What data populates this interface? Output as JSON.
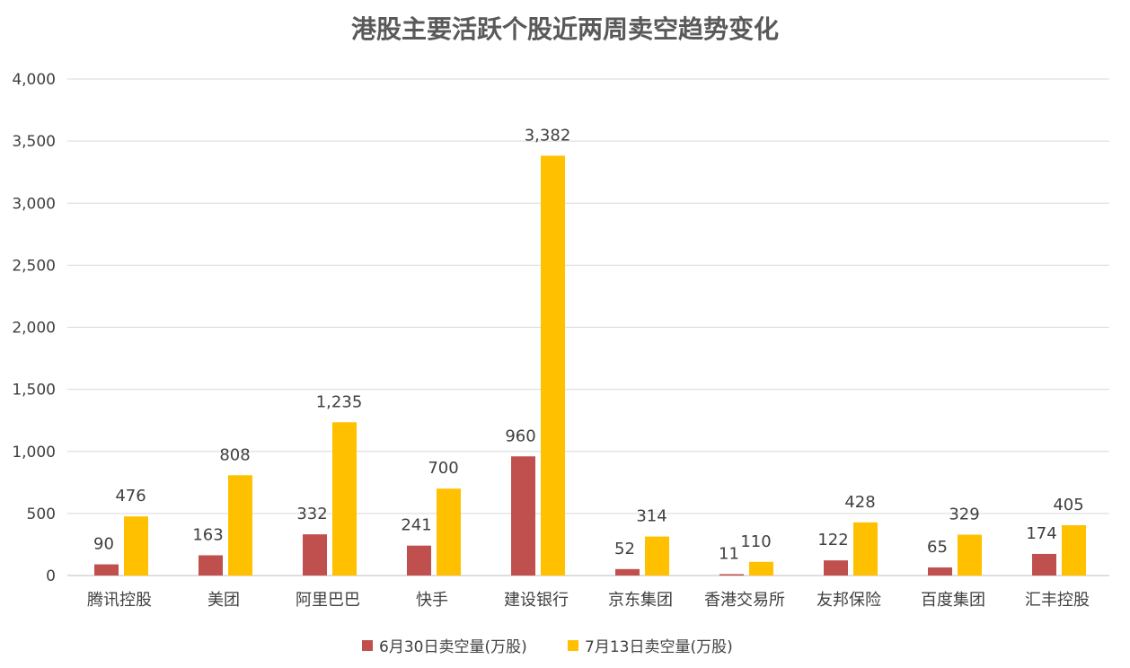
{
  "chart_data": {
    "type": "bar",
    "title": "港股主要活跃个股近两周卖空趋势变化",
    "xlabel": "",
    "ylabel": "",
    "ylim": [
      0,
      4000
    ],
    "yticks": [
      0,
      500,
      1000,
      1500,
      2000,
      2500,
      3000,
      3500,
      4000
    ],
    "ytick_labels": [
      "0",
      "500",
      "1,000",
      "1,500",
      "2,000",
      "2,500",
      "3,000",
      "3,500",
      "4,000"
    ],
    "grid": true,
    "legend_position": "bottom",
    "categories": [
      "腾讯控股",
      "美团",
      "阿里巴巴",
      "快手",
      "建设银行",
      "京东集团",
      "香港交易所",
      "友邦保险",
      "百度集团",
      "汇丰控股"
    ],
    "series": [
      {
        "name": "6月30日卖空量(万股)",
        "color": "#c0504d",
        "values": [
          90,
          163,
          332,
          241,
          960,
          52,
          11,
          122,
          65,
          174
        ],
        "labels": [
          "90",
          "163",
          "332",
          "241",
          "960",
          "52",
          "11",
          "122",
          "65",
          "174"
        ]
      },
      {
        "name": "7月13日卖空量(万股)",
        "color": "#ffc000",
        "values": [
          476,
          808,
          1235,
          700,
          3382,
          314,
          110,
          428,
          329,
          405
        ],
        "labels": [
          "476",
          "808",
          "1,235",
          "700",
          "3,382",
          "314",
          "110",
          "428",
          "329",
          "405"
        ]
      }
    ]
  }
}
